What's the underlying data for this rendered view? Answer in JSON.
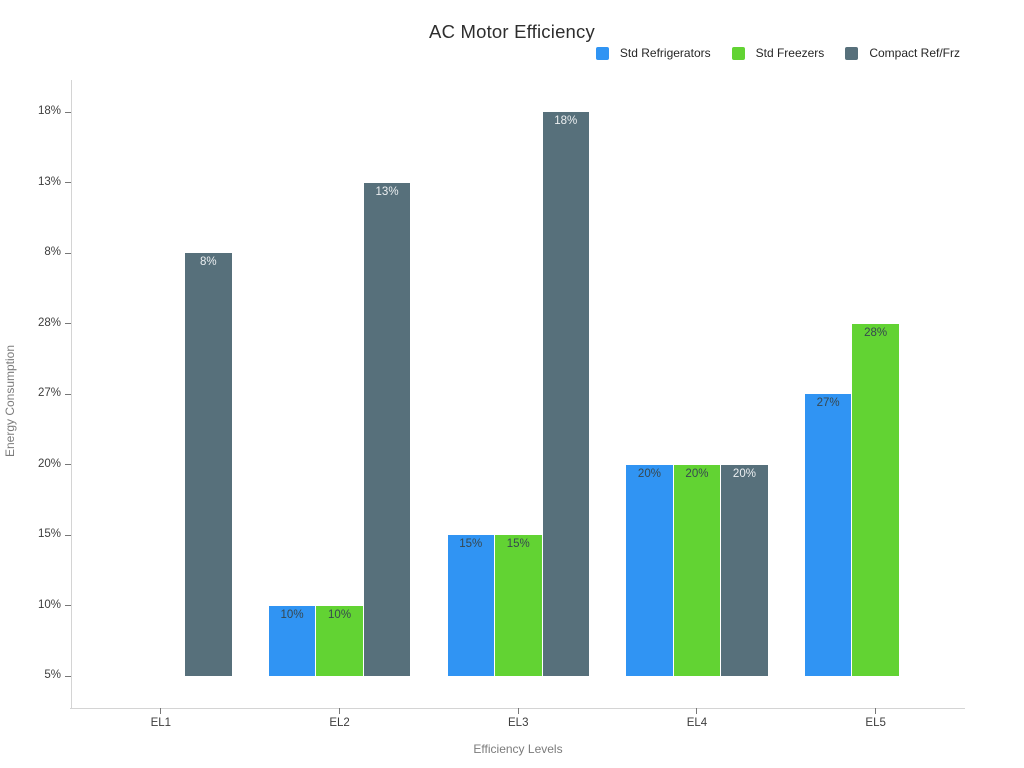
{
  "page": {
    "background": "#ffffff"
  },
  "chart_data": {
    "type": "bar",
    "title": "AC Motor Efficiency",
    "xlabel": "Efficiency Levels",
    "ylabel": "Energy Consumption",
    "categories": [
      "EL1",
      "EL2",
      "EL3",
      "EL4",
      "EL5"
    ],
    "y_axis": {
      "type": "category",
      "ticks_bottom_to_top": [
        "5%",
        "10%",
        "15%",
        "20%",
        "27%",
        "28%",
        "8%",
        "13%",
        "18%"
      ]
    },
    "series": [
      {
        "name": "Std Refrigerators",
        "color": "#3094f3",
        "label_color": "#37474f",
        "values": [
          null,
          "10%",
          "15%",
          "20%",
          "27%"
        ]
      },
      {
        "name": "Std Freezers",
        "color": "#62d333",
        "label_color": "#37474f",
        "values": [
          null,
          "10%",
          "15%",
          "20%",
          "28%"
        ]
      },
      {
        "name": "Compact Ref/Frz",
        "color": "#57707b",
        "label_color": "#eceff1",
        "values": [
          "8%",
          "13%",
          "18%",
          "20%",
          null
        ]
      }
    ],
    "bar_value_labels": true,
    "legend_position": "top-right",
    "grid": false,
    "colors": {
      "title_text": "#2e2e2e",
      "legend_text": "#262626",
      "tick_label_text": "#3d3d3d",
      "axis_title_text": "#7b7b7b",
      "axis_line": "#d4d4d4",
      "tick_mark": "#777777",
      "background": "#ffffff"
    }
  }
}
